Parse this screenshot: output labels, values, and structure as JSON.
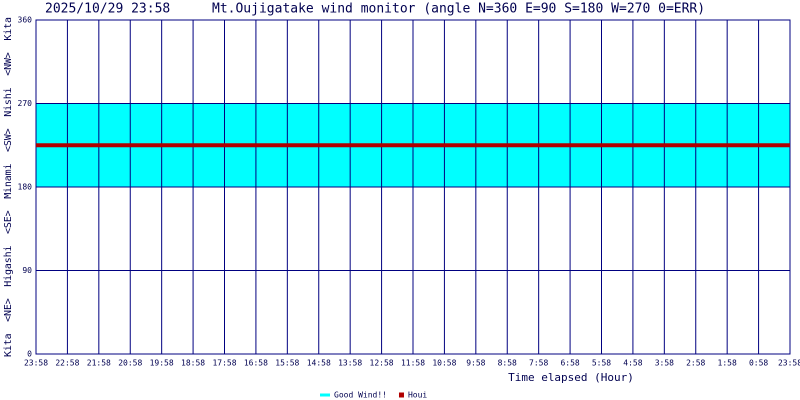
{
  "chart_data": {
    "type": "line",
    "timestamp": "2025/10/29 23:58",
    "title": "Mt.Oujigatake wind monitor (angle N=360 E=90 S=180 W=270 0=ERR)",
    "y_label": "Kita  <NE>  Higashi  <SE>  Minami  <SW>  Nishi  <NW>  Kita",
    "x_label": "Time elapsed (Hour)",
    "categories": [
      "23:58",
      "22:58",
      "21:58",
      "20:58",
      "19:58",
      "18:58",
      "17:58",
      "16:58",
      "15:58",
      "14:58",
      "13:58",
      "12:58",
      "11:58",
      "10:58",
      "9:58",
      "8:58",
      "7:58",
      "6:58",
      "5:58",
      "4:58",
      "3:58",
      "2:58",
      "1:58",
      "0:58",
      "23:58"
    ],
    "ylim": [
      0,
      360
    ],
    "yticks": [
      0,
      90,
      180,
      270,
      360
    ],
    "grid": true,
    "bands": [
      {
        "name": "Good Wind!!",
        "color": "#00ffff",
        "range": [
          180,
          270
        ]
      }
    ],
    "series": [
      {
        "name": "Houi",
        "color": "#b00000",
        "values": [
          225,
          225,
          225,
          225,
          225,
          225,
          225,
          225,
          225,
          225,
          225,
          225,
          225,
          225,
          225,
          225,
          225,
          225,
          225,
          225,
          225,
          225,
          225,
          225,
          225
        ]
      }
    ]
  }
}
